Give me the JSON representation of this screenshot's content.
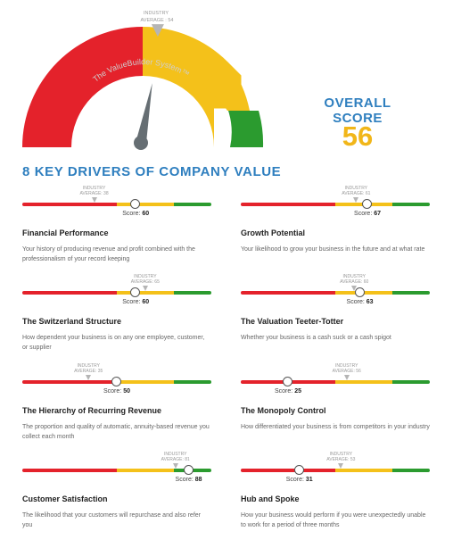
{
  "gauge": {
    "watermark": "The ValueBuilder System™",
    "industry_label": "INDUSTRY",
    "average_label": "AVERAGE : 54",
    "industry_average": 54,
    "score": 56,
    "colors": {
      "red": "#e4222b",
      "yellow": "#f4c11a",
      "green": "#2b9b2f",
      "needle": "#666e73"
    }
  },
  "overall": {
    "label": "OVERALL SCORE",
    "value": "56"
  },
  "section": {
    "title": "8 KEY DRIVERS OF COMPANY VALUE"
  },
  "drivers": [
    {
      "name": "Financial Performance",
      "description": "Your history of producing revenue and profit combined with the professionalism of your record keeping",
      "industry_label": "INDUSTRY",
      "average_label": "AVERAGE: 38",
      "average": 38,
      "score_label": "Score:",
      "score": "60",
      "score_value": 60
    },
    {
      "name": "Growth Potential",
      "description": "Your likelihood to grow your business in the future and at what rate",
      "industry_label": "INDUSTRY",
      "average_label": "AVERAGE: 61",
      "average": 61,
      "score_label": "Score:",
      "score": "67",
      "score_value": 67
    },
    {
      "name": "The Switzerland Structure",
      "description": "How dependent your business is on any one employee, customer, or supplier",
      "industry_label": "INDUSTRY",
      "average_label": "AVERAGE: 65",
      "average": 65,
      "score_label": "Score:",
      "score": "60",
      "score_value": 60
    },
    {
      "name": "The Valuation Teeter-Totter",
      "description": "Whether your business is a cash suck or a cash spigot",
      "industry_label": "INDUSTRY",
      "average_label": "AVERAGE: 60",
      "average": 60,
      "score_label": "Score:",
      "score": "63",
      "score_value": 63
    },
    {
      "name": "The Hierarchy of Recurring Revenue",
      "description": "The proportion and quality of automatic, annuity-based revenue you collect each month",
      "industry_label": "INDUSTRY",
      "average_label": "AVERAGE: 35",
      "average": 35,
      "score_label": "Score:",
      "score": "50",
      "score_value": 50
    },
    {
      "name": "The Monopoly Control",
      "description": "How differentiated your business is from competitors in your industry",
      "industry_label": "INDUSTRY",
      "average_label": "AVERAGE: 56",
      "average": 56,
      "score_label": "Score:",
      "score": "25",
      "score_value": 25
    },
    {
      "name": "Customer Satisfaction",
      "description": "The likelihood that your customers will repurchase and also refer you",
      "industry_label": "INDUSTRY",
      "average_label": "AVERAGE: 81",
      "average": 81,
      "score_label": "Score:",
      "score": "88",
      "score_value": 88
    },
    {
      "name": "Hub and Spoke",
      "description": "How your business would perform if you were unexpectedly unable to work for a period of three months",
      "industry_label": "INDUSTRY",
      "average_label": "AVERAGE: 53",
      "average": 53,
      "score_label": "Score:",
      "score": "31",
      "score_value": 31
    }
  ]
}
